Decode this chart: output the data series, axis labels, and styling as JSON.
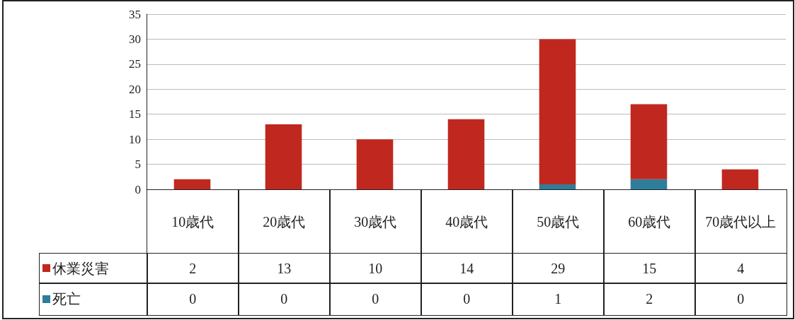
{
  "chart_data": {
    "type": "bar",
    "stacked": true,
    "categories": [
      "10歳代",
      "20歳代",
      "30歳代",
      "40歳代",
      "50歳代",
      "60歳代",
      "70歳代以上"
    ],
    "series": [
      {
        "name": "死亡",
        "color": "#2e7d9a",
        "values": [
          0,
          0,
          0,
          0,
          1,
          2,
          0
        ]
      },
      {
        "name": "休業災害",
        "color": "#c0281f",
        "values": [
          2,
          13,
          10,
          14,
          29,
          15,
          4
        ]
      }
    ],
    "ylim": [
      0,
      35
    ],
    "yticks": [
      0,
      5,
      10,
      15,
      20,
      25,
      30,
      35
    ],
    "grid": "y",
    "legend": "bottom",
    "data_labels": true
  }
}
